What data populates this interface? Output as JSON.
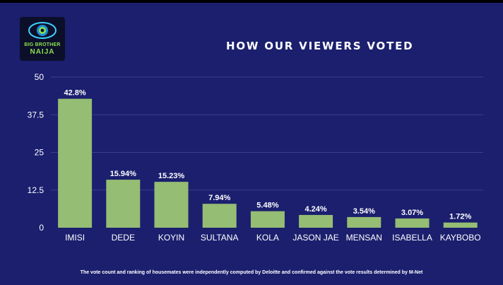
{
  "header": {
    "title": "HOW OUR VIEWERS VOTED",
    "logo_line1": "BIG BROTHER",
    "logo_line2": "NAIJA"
  },
  "footnote": "The vote count and ranking of housemates were independently computed by Deloitte and confirmed against the vote results determined by M-Net",
  "colors": {
    "background": "#1b1f6e",
    "bar": "#95bd73",
    "text": "#ffffff",
    "grid": "#3a3f8f"
  },
  "chart_data": {
    "type": "bar",
    "title": "HOW OUR VIEWERS VOTED",
    "xlabel": "",
    "ylabel": "",
    "categories": [
      "IMISI",
      "DEDE",
      "KOYIN",
      "SULTANA",
      "KOLA",
      "JASON JAE",
      "MENSAN",
      "ISABELLA",
      "KAYBOBO"
    ],
    "values": [
      42.8,
      15.94,
      15.23,
      7.94,
      5.48,
      4.24,
      3.54,
      3.07,
      1.72
    ],
    "data_labels": [
      "42.8%",
      "15.94%",
      "15.23%",
      "7.94%",
      "5.48%",
      "4.24%",
      "3.54%",
      "3.07%",
      "1.72%"
    ],
    "y_ticks": [
      0,
      12.5,
      25,
      37.5,
      50
    ],
    "y_tick_labels": [
      "0",
      "12.5",
      "25",
      "37.5",
      "50"
    ],
    "ylim": [
      0,
      50
    ],
    "grid": true,
    "legend": "none"
  }
}
